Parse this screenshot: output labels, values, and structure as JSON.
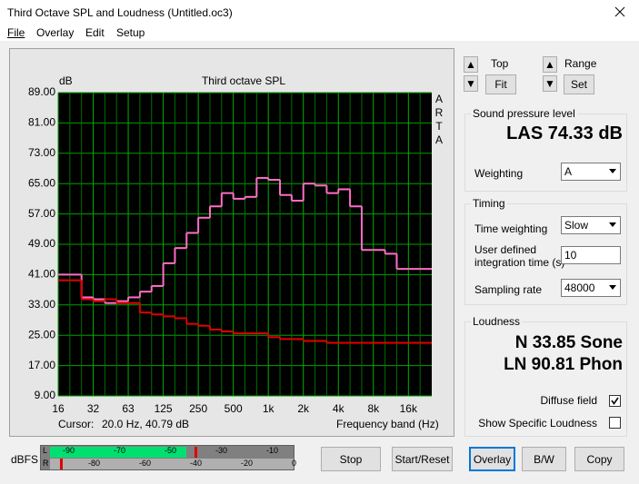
{
  "window": {
    "title": "Third Octave SPL and Loudness (Untitled.oc3)",
    "menu": [
      "File",
      "Overlay",
      "Edit",
      "Setup"
    ]
  },
  "chart_data": {
    "type": "line",
    "title": "Third octave SPL",
    "y_label": "dB",
    "side_label": "ARTA",
    "x_label": "Frequency band (Hz)",
    "cursor_label": "Cursor:",
    "cursor_value": "20.0 Hz, 40.79 dB",
    "categories": [
      "16",
      null,
      null,
      "32",
      null,
      null,
      "63",
      null,
      null,
      "125",
      null,
      null,
      "250",
      null,
      null,
      "500",
      null,
      null,
      "1k",
      null,
      null,
      "2k",
      null,
      null,
      "4k",
      null,
      null,
      "8k",
      null,
      null,
      "16k",
      null
    ],
    "series": [
      {
        "color": "#ff6ec7",
        "values": [
          41,
          41,
          35,
          34.5,
          33.5,
          34,
          35,
          36.5,
          38,
          44,
          48,
          52,
          56,
          59,
          62.5,
          61,
          61.5,
          66.5,
          66,
          62,
          60.5,
          65,
          64.5,
          62.5,
          63.5,
          59,
          47.5,
          47.5,
          46.5,
          42.5,
          42.5,
          42.5
        ]
      },
      {
        "color": "#e00000",
        "values": [
          39.5,
          39.5,
          34.5,
          34,
          34.5,
          33.5,
          33.5,
          31,
          30.5,
          30,
          29.5,
          28,
          27.5,
          26.5,
          26,
          25.5,
          25.5,
          25.5,
          24.5,
          24,
          24,
          23.5,
          23.5,
          23,
          23,
          23,
          23,
          23,
          23,
          23,
          23,
          23
        ]
      }
    ],
    "ylim": [
      9,
      89
    ],
    "yticks": [
      {
        "value": 9,
        "label": "9.00"
      },
      {
        "value": 17,
        "label": "17.00"
      },
      {
        "value": 25,
        "label": "25.00"
      },
      {
        "value": 33,
        "label": "33.00"
      },
      {
        "value": 41,
        "label": "41.00"
      },
      {
        "value": 49,
        "label": "49.00"
      },
      {
        "value": 57,
        "label": "57.00"
      },
      {
        "value": 65,
        "label": "65.00"
      },
      {
        "value": 73,
        "label": "73.00"
      },
      {
        "value": 81,
        "label": "81.00"
      },
      {
        "value": 89,
        "label": "89.00"
      }
    ],
    "grid": true
  },
  "controls": {
    "top": "Top",
    "fit": "Fit",
    "range": "Range",
    "set": "Set",
    "spl": {
      "group": "Sound pressure level",
      "reading": "LAS 74.33 dB",
      "weighting_label": "Weighting",
      "weighting": "A"
    },
    "timing": {
      "group": "Timing",
      "time_weighting_label": "Time weighting",
      "time_weighting": "Slow",
      "integration_label": "User defined integration time (s)",
      "integration": "10",
      "sampling_label": "Sampling rate",
      "sampling": "48000"
    },
    "loudness": {
      "group": "Loudness",
      "n": "N 33.85 Sone",
      "ln": "LN 90.81 Phon",
      "diffuse": {
        "label": "Diffuse field",
        "checked": true
      },
      "specific": {
        "label": "Show Specific Loudness",
        "checked": false
      }
    }
  },
  "meter": {
    "label": "dBFS",
    "left": {
      "name": "L",
      "ticks": [
        "-90",
        "-70",
        "-50",
        "-30",
        "-10"
      ]
    },
    "right": {
      "name": "R",
      "ticks": [
        "-80",
        "-60",
        "-40",
        "-20",
        "0"
      ]
    }
  },
  "buttons": [
    "Stop",
    "Start/Reset",
    "Overlay",
    "B/W",
    "Copy"
  ]
}
